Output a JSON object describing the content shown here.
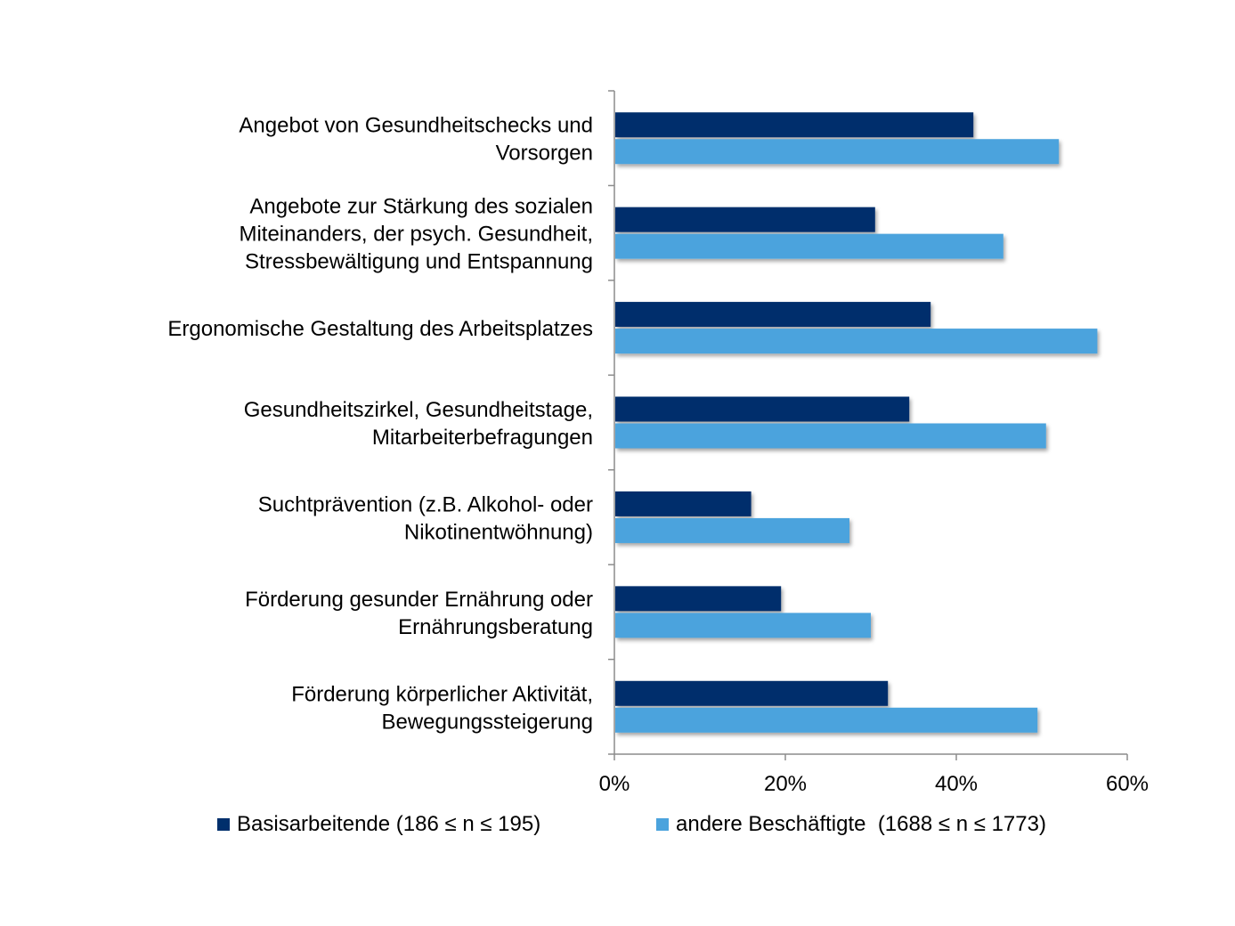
{
  "chart_data": {
    "type": "bar",
    "orientation": "horizontal",
    "categories": [
      [
        "Angebot von Gesundheitschecks und",
        "Vorsorgen"
      ],
      [
        "Angebote zur Stärkung des sozialen",
        "Miteinanders, der psych. Gesundheit,",
        "Stressbewältigung und Entspannung"
      ],
      [
        "Ergonomische Gestaltung des Arbeitsplatzes"
      ],
      [
        "Gesundheitszirkel, Gesundheitstage,",
        "Mitarbeiterbefragungen"
      ],
      [
        "Suchtprävention (z.B. Alkohol- oder",
        "Nikotinentwöhnung)"
      ],
      [
        "Förderung gesunder Ernährung oder",
        "Ernährungsberatung"
      ],
      [
        "Förderung körperlicher Aktivität,",
        "Bewegungssteigerung"
      ]
    ],
    "series": [
      {
        "name": "Basisarbeitende (186 ≤ n ≤ 195)",
        "color": "#002f6c",
        "values": [
          42,
          30.5,
          37,
          34.5,
          16,
          19.5,
          32
        ]
      },
      {
        "name": "andere Beschäftigte  (1688 ≤ n ≤ 1773)",
        "color": "#4ba3dd",
        "values": [
          52,
          45.5,
          56.5,
          50.5,
          27.5,
          30,
          49.5
        ]
      }
    ],
    "xlim": [
      0,
      60
    ],
    "xticks": [
      "0%",
      "20%",
      "40%",
      "60%"
    ],
    "xtick_values": [
      0,
      20,
      40,
      60
    ],
    "grid": false,
    "legend_position": "bottom"
  }
}
